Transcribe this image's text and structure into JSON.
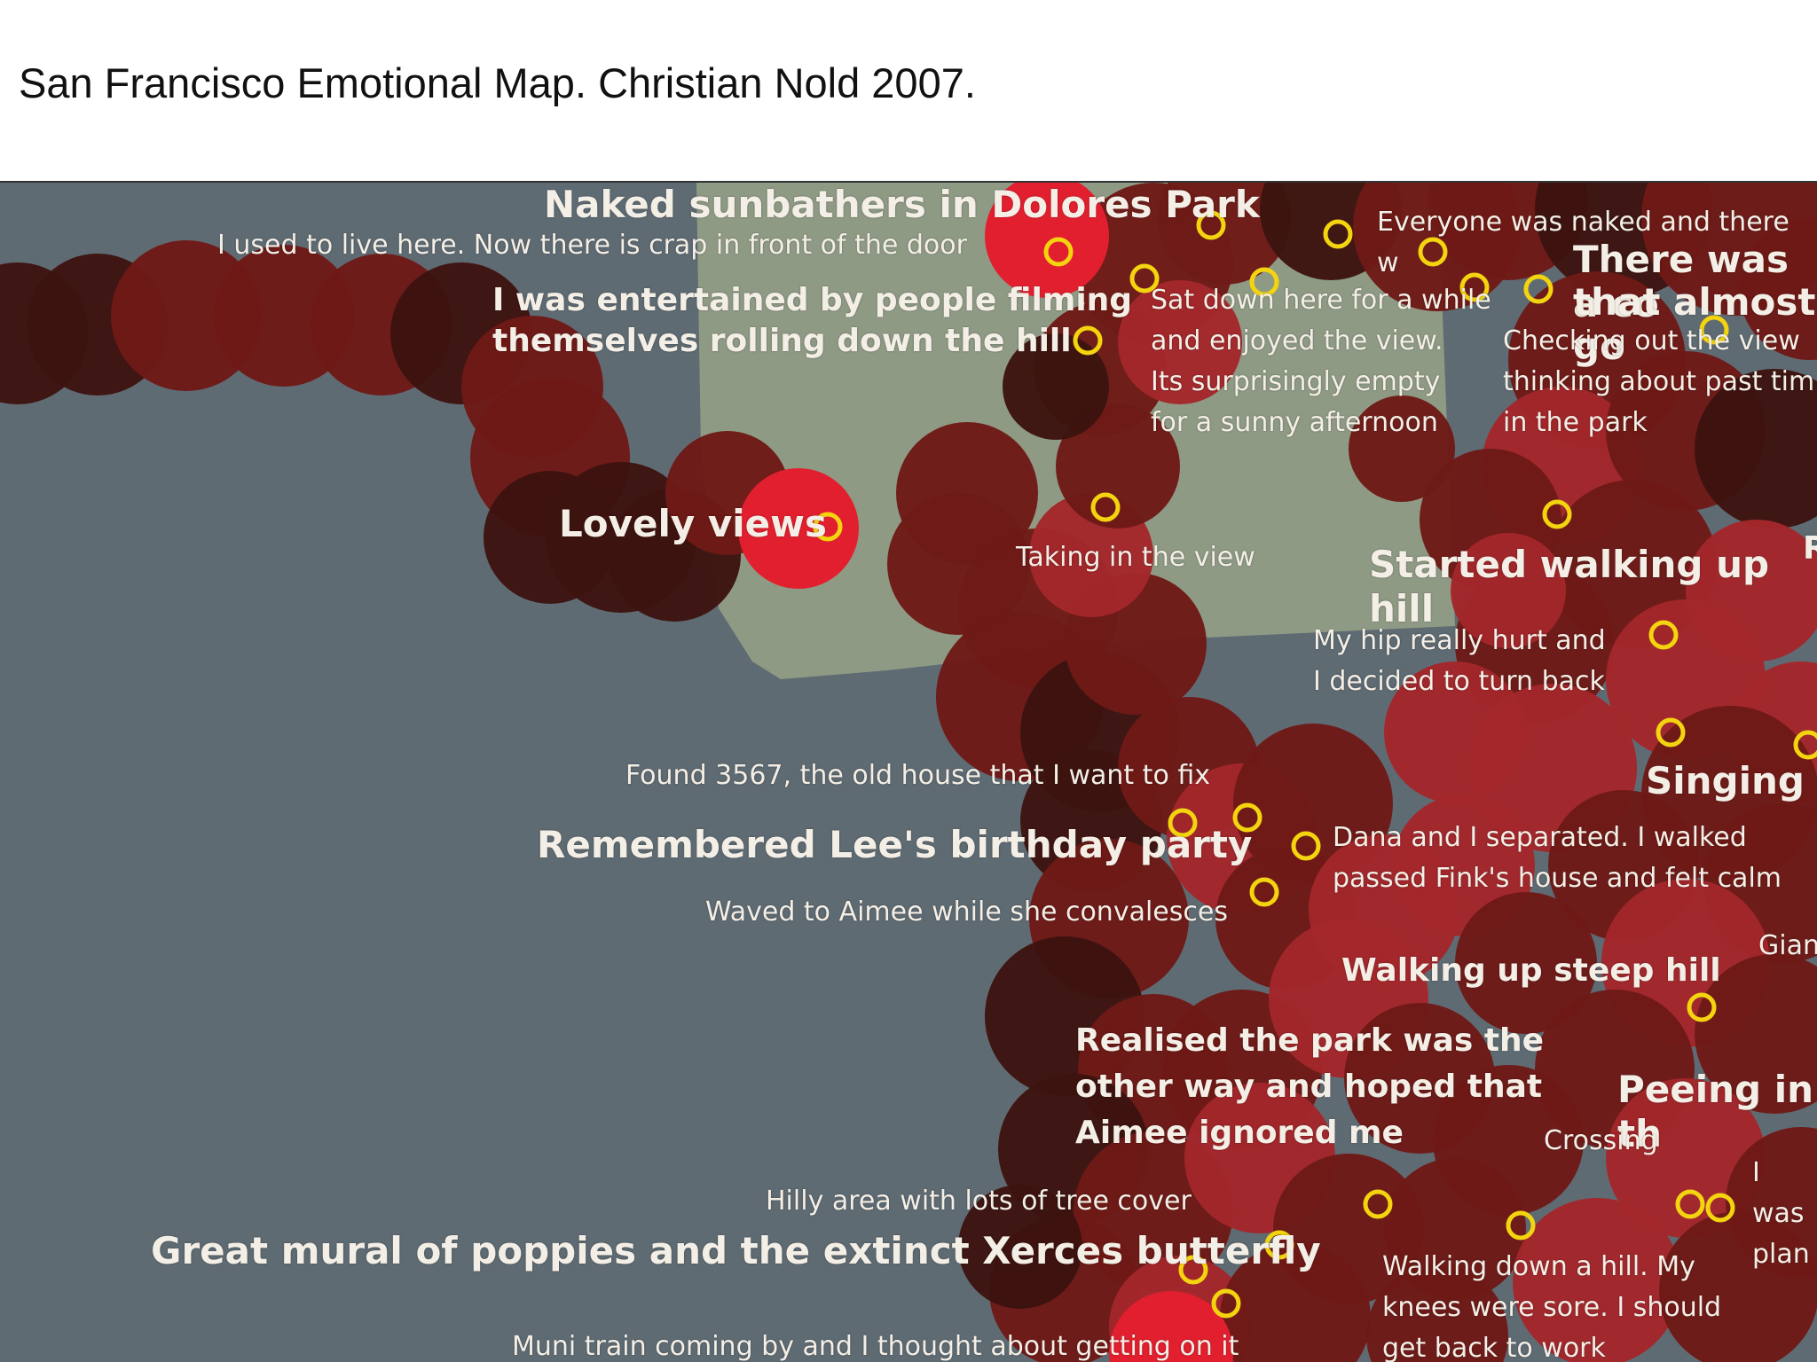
{
  "caption": "San Francisco Emotional Map. Christian Nold 2007.",
  "colors": {
    "water": "#5f6b73",
    "park": "#8f9a85",
    "arousal_low": "#3d1410",
    "arousal_mid": "#6e1a17",
    "arousal_high": "#a3272b",
    "arousal_peak": "#e21f2f",
    "marker": "#f3d40f",
    "label": "#f4efe6"
  },
  "labels": [
    {
      "id": "naked-sunbathers",
      "text": "Naked sunbathers in Dolores Park"
    },
    {
      "id": "used-to-live",
      "text": "I used to live here. Now there is crap in front of the door"
    },
    {
      "id": "everyone-naked",
      "text": "Everyone was naked and there w"
    },
    {
      "id": "there-was-a-co",
      "text": "There was a co"
    },
    {
      "id": "that-almost",
      "text": "that almost go"
    },
    {
      "id": "entertained",
      "text": "I was entertained by people filming\nthemselves rolling down the hill"
    },
    {
      "id": "sat-down",
      "text": "Sat down here for a while\nand enjoyed the view.\nIts surprisingly empty\nfor a sunny afternoon"
    },
    {
      "id": "checking-out",
      "text": "Checking out the view\nthinking about past tim\nin the park"
    },
    {
      "id": "lovely-views",
      "text": "Lovely views"
    },
    {
      "id": "taking-in-view",
      "text": "Taking in the view"
    },
    {
      "id": "started-walking",
      "text": "Started walking up hill"
    },
    {
      "id": "hip-hurt",
      "text": "My hip really hurt and\nI decided to turn back"
    },
    {
      "id": "found-3567",
      "text": "Found 3567, the old house that I want to fix"
    },
    {
      "id": "singing",
      "text": "Singing"
    },
    {
      "id": "lees-birthday",
      "text": "Remembered Lee's birthday party"
    },
    {
      "id": "dana-separated",
      "text": "Dana and I separated. I walked\npassed Fink's house and felt calm"
    },
    {
      "id": "waved-aimee",
      "text": "Waved to Aimee while she convalesces"
    },
    {
      "id": "gian",
      "text": "Gian"
    },
    {
      "id": "walking-steep",
      "text": "Walking up steep hill"
    },
    {
      "id": "realised-park",
      "text": "Realised the park was the\nother way and hoped that\nAimee ignored me"
    },
    {
      "id": "peeing",
      "text": "Peeing in th"
    },
    {
      "id": "crossing",
      "text": "Crossing"
    },
    {
      "id": "i-was-plan",
      "text": "I was\nplan"
    },
    {
      "id": "hilly-area",
      "text": "Hilly area with lots of tree cover"
    },
    {
      "id": "great-mural",
      "text": "Great mural of poppies and the extinct Xerces butterfly"
    },
    {
      "id": "walking-down",
      "text": "Walking down a hill. My\nknees were sore. I should\nget back to work"
    },
    {
      "id": "muni-train",
      "text": "Muni train coming by and I thought about getting on it"
    },
    {
      "id": "edge-r",
      "text": "R"
    }
  ]
}
